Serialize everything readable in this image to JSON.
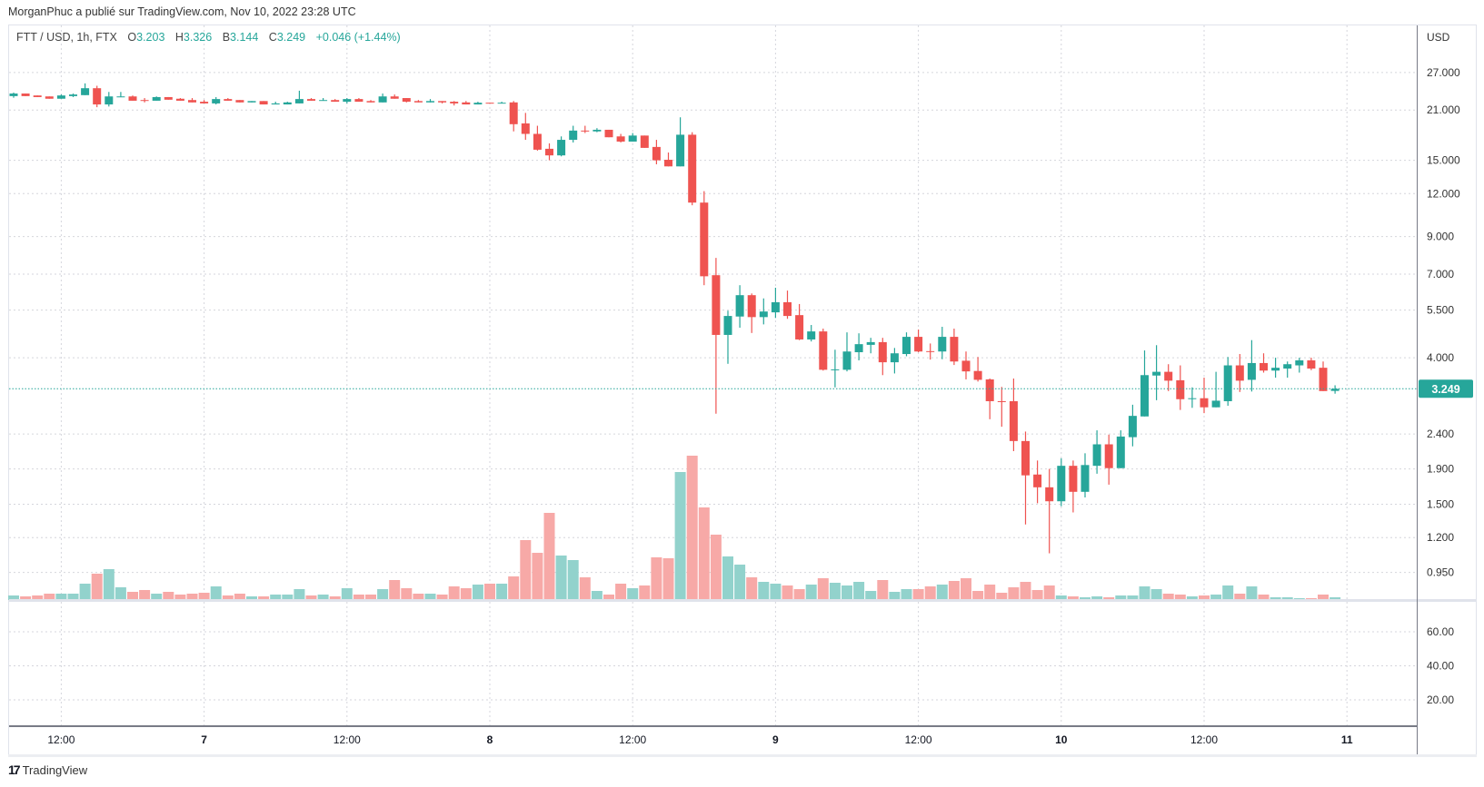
{
  "header": {
    "published": "MorganPhuc a publié sur TradingView.com, Nov 10, 2022 23:28 UTC"
  },
  "legend": {
    "symbol": "FTT / USD, 1h, FTX",
    "open_label": "O",
    "open": "3.203",
    "high_label": "H",
    "high": "3.326",
    "low_label": "B",
    "low": "3.144",
    "close_label": "C",
    "close": "3.249",
    "change": "+0.046 (+1.44%)"
  },
  "logo": {
    "text": "TradingView"
  },
  "colors": {
    "up": "#26a69a",
    "down": "#ef5350",
    "up_volume": "#92d2cc",
    "down_volume": "#f7a9a7",
    "grid": "#d5d6dc"
  },
  "chart_data": {
    "type": "candlestick",
    "title": "FTT / USD, 1h, FTX",
    "interval": "1h",
    "start": "Nov 6 08:00",
    "scale": "log",
    "price_range": [
      0.79,
      37.0
    ],
    "currency_label": "USD",
    "yticks": [
      {
        "value": 27,
        "label": "27.000"
      },
      {
        "value": 21,
        "label": "21.000"
      },
      {
        "value": 15,
        "label": "15.000"
      },
      {
        "value": 12,
        "label": "12.000"
      },
      {
        "value": 9,
        "label": "9.000"
      },
      {
        "value": 7,
        "label": "7.000"
      },
      {
        "value": 5.5,
        "label": "5.500"
      },
      {
        "value": 4,
        "label": "4.000"
      },
      {
        "value": 2.4,
        "label": "2.400"
      },
      {
        "value": 1.9,
        "label": "1.900"
      },
      {
        "value": 1.5,
        "label": "1.500"
      },
      {
        "value": 1.2,
        "label": "1.200"
      },
      {
        "value": 0.95,
        "label": "0.950"
      }
    ],
    "last_price": {
      "value": 3.249,
      "label": "3.249"
    },
    "xticks": [
      {
        "hour": 4,
        "label": "12:00"
      },
      {
        "hour": 16,
        "label": "7"
      },
      {
        "hour": 28,
        "label": "12:00"
      },
      {
        "hour": 40,
        "label": "8"
      },
      {
        "hour": 52,
        "label": "12:00"
      },
      {
        "hour": 64,
        "label": "9"
      },
      {
        "hour": 76,
        "label": "12:00"
      },
      {
        "hour": 88,
        "label": "10"
      },
      {
        "hour": 100,
        "label": "12:00"
      },
      {
        "hour": 112,
        "label": "11"
      }
    ],
    "indicator_ticks": [
      {
        "value": 60,
        "label": "60.00"
      },
      {
        "value": 40,
        "label": "40.00"
      },
      {
        "value": 20,
        "label": "20.00"
      }
    ],
    "ohlc_columns": [
      "open",
      "high",
      "low",
      "close"
    ],
    "ohlc": [
      [
        23.05,
        23.6,
        22.8,
        23.45
      ],
      [
        23.45,
        23.45,
        23.05,
        23.05
      ],
      [
        23.15,
        23.15,
        22.9,
        22.9
      ],
      [
        23.0,
        23.0,
        22.65,
        22.65
      ],
      [
        22.65,
        23.3,
        22.65,
        23.15
      ],
      [
        23.05,
        23.45,
        22.9,
        23.3
      ],
      [
        23.2,
        25.1,
        23.2,
        24.3
      ],
      [
        24.3,
        24.7,
        21.4,
        21.8
      ],
      [
        21.8,
        23.7,
        21.5,
        23.0
      ],
      [
        22.9,
        23.7,
        22.9,
        23.0
      ],
      [
        23.0,
        23.15,
        22.35,
        22.35
      ],
      [
        22.45,
        22.75,
        22.1,
        22.35
      ],
      [
        22.35,
        23.0,
        22.35,
        22.9
      ],
      [
        22.9,
        22.9,
        22.5,
        22.5
      ],
      [
        22.65,
        22.75,
        22.35,
        22.35
      ],
      [
        22.45,
        22.75,
        22.1,
        22.1
      ],
      [
        22.2,
        22.45,
        21.95,
        21.95
      ],
      [
        21.95,
        22.9,
        21.8,
        22.6
      ],
      [
        22.6,
        22.75,
        22.35,
        22.35
      ],
      [
        22.45,
        22.45,
        22.1,
        22.1
      ],
      [
        22.1,
        22.3,
        22.1,
        22.3
      ],
      [
        22.3,
        22.3,
        21.8,
        21.8
      ],
      [
        21.8,
        22.2,
        21.8,
        21.95
      ],
      [
        21.8,
        22.2,
        21.8,
        22.1
      ],
      [
        21.95,
        23.9,
        21.95,
        22.6
      ],
      [
        22.6,
        22.75,
        22.35,
        22.35
      ],
      [
        22.35,
        22.75,
        22.35,
        22.45
      ],
      [
        22.45,
        22.6,
        22.2,
        22.2
      ],
      [
        22.2,
        22.75,
        21.95,
        22.6
      ],
      [
        22.6,
        22.75,
        22.2,
        22.2
      ],
      [
        22.3,
        22.45,
        22.1,
        22.1
      ],
      [
        22.1,
        23.45,
        22.1,
        23.0
      ],
      [
        23.0,
        23.3,
        22.65,
        22.65
      ],
      [
        22.75,
        22.75,
        22.1,
        22.2
      ],
      [
        22.3,
        22.45,
        22.1,
        22.1
      ],
      [
        22.1,
        22.6,
        22.1,
        22.3
      ],
      [
        22.3,
        22.3,
        21.95,
        22.1
      ],
      [
        22.2,
        22.3,
        21.65,
        21.95
      ],
      [
        22.1,
        22.3,
        21.8,
        21.8
      ],
      [
        21.8,
        22.2,
        21.8,
        22.05
      ],
      [
        22.05,
        22.05,
        21.95,
        21.95
      ],
      [
        21.95,
        22.2,
        21.95,
        22.05
      ],
      [
        22.1,
        22.3,
        18.2,
        19.1
      ],
      [
        19.2,
        20.6,
        17.2,
        17.9
      ],
      [
        17.9,
        18.9,
        16.0,
        16.1
      ],
      [
        16.2,
        16.8,
        15.0,
        15.5
      ],
      [
        15.5,
        17.6,
        15.4,
        17.2
      ],
      [
        17.2,
        18.9,
        16.9,
        18.3
      ],
      [
        18.3,
        18.9,
        18.0,
        18.2
      ],
      [
        18.2,
        18.6,
        18.1,
        18.4
      ],
      [
        18.4,
        18.4,
        17.5,
        17.5
      ],
      [
        17.6,
        17.9,
        16.9,
        17.0
      ],
      [
        17.0,
        18.0,
        17.0,
        17.7
      ],
      [
        17.7,
        17.7,
        16.3,
        16.3
      ],
      [
        16.4,
        17.2,
        14.6,
        15.0
      ],
      [
        15.05,
        15.8,
        14.4,
        14.4
      ],
      [
        14.4,
        20.0,
        14.4,
        17.8
      ],
      [
        17.8,
        18.1,
        11.1,
        11.3
      ],
      [
        11.3,
        12.2,
        6.5,
        6.9
      ],
      [
        6.95,
        7.8,
        2.75,
        4.66
      ],
      [
        4.66,
        5.48,
        3.84,
        5.29
      ],
      [
        5.27,
        6.5,
        4.89,
        6.08
      ],
      [
        6.08,
        6.15,
        4.72,
        5.25
      ],
      [
        5.25,
        5.95,
        5.0,
        5.45
      ],
      [
        5.42,
        6.39,
        5.22,
        5.8
      ],
      [
        5.8,
        6.27,
        5.19,
        5.29
      ],
      [
        5.32,
        5.73,
        4.5,
        4.52
      ],
      [
        4.52,
        4.98,
        4.46,
        4.77
      ],
      [
        4.77,
        4.86,
        3.67,
        3.69
      ],
      [
        3.69,
        4.22,
        3.28,
        3.7
      ],
      [
        3.69,
        4.74,
        3.65,
        4.17
      ],
      [
        4.15,
        4.71,
        3.93,
        4.38
      ],
      [
        4.36,
        4.57,
        4.12,
        4.44
      ],
      [
        4.44,
        4.57,
        3.56,
        3.88
      ],
      [
        3.88,
        4.27,
        3.6,
        4.12
      ],
      [
        4.1,
        4.74,
        4.04,
        4.6
      ],
      [
        4.6,
        4.83,
        4.15,
        4.17
      ],
      [
        4.18,
        4.4,
        3.95,
        4.17
      ],
      [
        4.17,
        4.92,
        3.96,
        4.6
      ],
      [
        4.6,
        4.86,
        3.81,
        3.9
      ],
      [
        3.92,
        4.17,
        3.46,
        3.65
      ],
      [
        3.66,
        4.02,
        3.41,
        3.45
      ],
      [
        3.46,
        3.48,
        2.65,
        2.99
      ],
      [
        2.99,
        3.29,
        2.52,
        2.98
      ],
      [
        2.99,
        3.48,
        2.14,
        2.29
      ],
      [
        2.29,
        2.44,
        1.31,
        1.82
      ],
      [
        1.83,
        2.01,
        1.51,
        1.68
      ],
      [
        1.68,
        1.9,
        1.08,
        1.53
      ],
      [
        1.53,
        2.04,
        1.48,
        1.94
      ],
      [
        1.94,
        2.01,
        1.42,
        1.63
      ],
      [
        1.63,
        2.11,
        1.57,
        1.95
      ],
      [
        1.94,
        2.46,
        1.84,
        2.24
      ],
      [
        2.24,
        2.39,
        1.71,
        1.91
      ],
      [
        1.91,
        2.46,
        1.91,
        2.36
      ],
      [
        2.35,
        2.92,
        2.21,
        2.71
      ],
      [
        2.7,
        4.2,
        2.7,
        3.56
      ],
      [
        3.55,
        4.35,
        3.01,
        3.64
      ],
      [
        3.64,
        3.83,
        3.2,
        3.43
      ],
      [
        3.44,
        3.8,
        2.82,
        3.03
      ],
      [
        3.04,
        3.28,
        2.86,
        3.05
      ],
      [
        3.05,
        3.5,
        2.76,
        2.87
      ],
      [
        2.87,
        3.64,
        2.87,
        3.0
      ],
      [
        2.99,
        4.02,
        2.9,
        3.8
      ],
      [
        3.8,
        4.1,
        3.18,
        3.43
      ],
      [
        3.45,
        4.5,
        3.19,
        3.86
      ],
      [
        3.86,
        4.12,
        3.62,
        3.67
      ],
      [
        3.67,
        4.0,
        3.5,
        3.74
      ],
      [
        3.72,
        3.9,
        3.5,
        3.83
      ],
      [
        3.8,
        4.0,
        3.62,
        3.93
      ],
      [
        3.93,
        4.0,
        3.68,
        3.72
      ],
      [
        3.74,
        3.9,
        3.2,
        3.2
      ],
      [
        3.203,
        3.326,
        3.144,
        3.249
      ]
    ],
    "volume_relative": [
      5,
      4,
      5,
      7,
      7,
      7,
      18,
      29,
      34,
      14,
      9,
      11,
      7,
      9,
      6,
      7,
      8,
      15,
      5,
      7,
      4,
      4,
      6,
      6,
      12,
      5,
      6,
      4,
      13,
      6,
      6,
      12,
      22,
      13,
      7,
      7,
      6,
      15,
      13,
      17,
      18,
      18,
      26,
      66,
      52,
      96,
      49,
      44,
      25,
      10,
      6,
      18,
      13,
      16,
      47,
      46,
      141,
      159,
      102,
      72,
      48,
      39,
      25,
      20,
      18,
      16,
      12,
      17,
      24,
      19,
      16,
      20,
      10,
      22,
      9,
      12,
      12,
      15,
      17,
      21,
      24,
      10,
      17,
      8,
      14,
      20,
      11,
      16,
      5,
      4,
      3,
      4,
      3,
      5,
      5,
      15,
      12,
      7,
      6,
      4,
      5,
      6,
      16,
      7,
      15,
      6,
      3,
      3,
      2,
      2,
      6,
      3
    ]
  }
}
